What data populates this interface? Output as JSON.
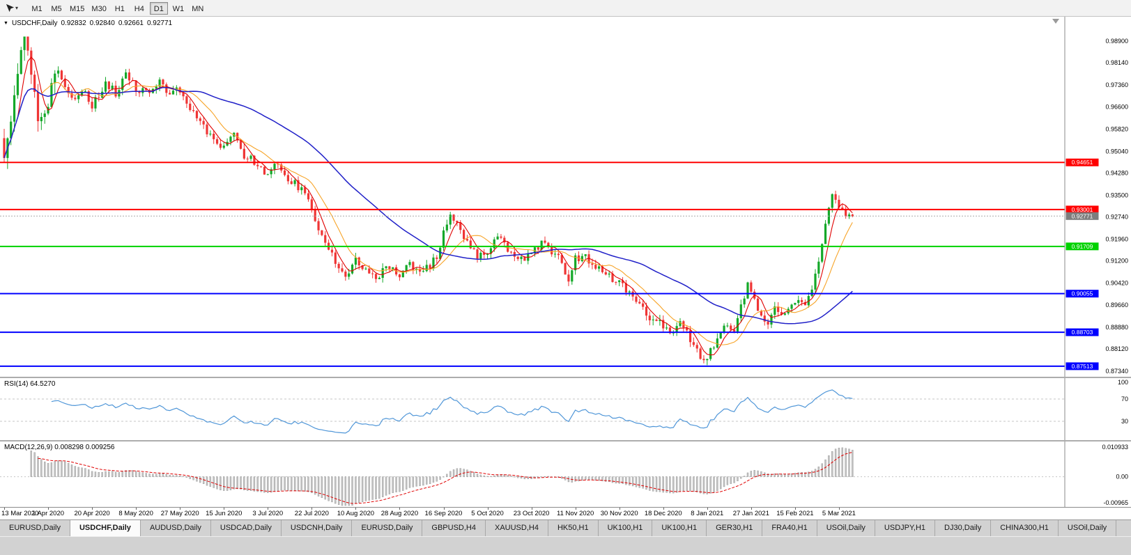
{
  "toolbar": {
    "timeframes": [
      "M1",
      "M5",
      "M15",
      "M30",
      "H1",
      "H4",
      "D1",
      "W1",
      "MN"
    ],
    "active_timeframe": "D1"
  },
  "chart": {
    "info": {
      "symbol": "USDCHF,Daily",
      "open": "0.92832",
      "high": "0.92840",
      "low": "0.92661",
      "close": "0.92771"
    },
    "axis_labels": [
      "0.98900",
      "0.98140",
      "0.97360",
      "0.96600",
      "0.95820",
      "0.95040",
      "0.94280",
      "0.93500",
      "0.92740",
      "0.91960",
      "0.91200",
      "0.90420",
      "0.89660",
      "0.88880",
      "0.88120",
      "0.87340"
    ],
    "hlines": [
      {
        "price": 0.94651,
        "label": "0.94651",
        "color": "#ff0000",
        "width": 2
      },
      {
        "price": 0.93001,
        "label": "0.93001",
        "color": "#ff0000",
        "width": 2
      },
      {
        "price": 0.91709,
        "label": "0.91709",
        "color": "#00d200",
        "width": 2
      },
      {
        "price": 0.90055,
        "label": "0.90055",
        "color": "#0000ff",
        "width": 2
      },
      {
        "price": 0.88703,
        "label": "0.88703",
        "color": "#0000ff",
        "width": 2
      },
      {
        "price": 0.87513,
        "label": "0.87513",
        "color": "#0000ff",
        "width": 2
      }
    ],
    "current_price": {
      "value": 0.92771,
      "label": "0.92771",
      "box_color": "#7d7d7d"
    }
  },
  "rsi": {
    "label": "RSI(14) 64.5270",
    "line_color": "#4f96d8",
    "levels": [
      {
        "value": 100,
        "label": "100"
      },
      {
        "value": 70,
        "label": "70"
      },
      {
        "value": 30,
        "label": "30"
      }
    ]
  },
  "macd": {
    "label": "MACD(12,26,9) 0.008298 0.009256",
    "axis_max": {
      "value": 0.010933,
      "label": "0.010933"
    },
    "axis_zero": {
      "value": 0,
      "label": "0.00"
    },
    "axis_min": {
      "value": -0.00965,
      "label": "-0.00965"
    },
    "histogram_color": "#c4c4c4",
    "signal_color": "#e00000"
  },
  "date_axis": {
    "labels": [
      "13 Mar 2020",
      "1 Apr 2020",
      "20 Apr 2020",
      "8 May 2020",
      "27 May 2020",
      "15 Jun 2020",
      "3 Jul 2020",
      "22 Jul 2020",
      "10 Aug 2020",
      "28 Aug 2020",
      "16 Sep 2020",
      "5 Oct 2020",
      "23 Oct 2020",
      "11 Nov 2020",
      "30 Nov 2020",
      "18 Dec 2020",
      "8 Jan 2021",
      "27 Jan 2021",
      "15 Feb 2021",
      "5 Mar 2021"
    ]
  },
  "tabs": [
    {
      "label": "EURUSD,Daily",
      "active": false
    },
    {
      "label": "USDCHF,Daily",
      "active": true
    },
    {
      "label": "AUDUSD,Daily",
      "active": false
    },
    {
      "label": "USDCAD,Daily",
      "active": false
    },
    {
      "label": "USDCNH,Daily",
      "active": false
    },
    {
      "label": "EURUSD,Daily",
      "active": false
    },
    {
      "label": "GBPUSD,H4",
      "active": false
    },
    {
      "label": "XAUUSD,H4",
      "active": false
    },
    {
      "label": "HK50,H1",
      "active": false
    },
    {
      "label": "UK100,H1",
      "active": false
    },
    {
      "label": "UK100,H1",
      "active": false
    },
    {
      "label": "GER30,H1",
      "active": false
    },
    {
      "label": "FRA40,H1",
      "active": false
    },
    {
      "label": "USOil,Daily",
      "active": false
    },
    {
      "label": "USDJPY,H1",
      "active": false
    },
    {
      "label": "DJ30,Daily",
      "active": false
    },
    {
      "label": "CHINA300,H1",
      "active": false
    },
    {
      "label": "USOil,Daily",
      "active": false
    }
  ],
  "chart_data": {
    "type": "candlestick",
    "symbol": "USDCHF",
    "timeframe": "Daily",
    "title": "USDCHF,Daily",
    "price_range": {
      "top": 0.989,
      "bottom": 0.8734
    },
    "candle_count": 252,
    "candles_per_tick": 13,
    "last_close": 0.92771,
    "close_anchors": [
      [
        0,
        0.947
      ],
      [
        2,
        0.9575
      ],
      [
        4,
        0.98
      ],
      [
        6,
        0.9885
      ],
      [
        8,
        0.976
      ],
      [
        10,
        0.96
      ],
      [
        13,
        0.9665
      ],
      [
        15,
        0.9795
      ],
      [
        17,
        0.9755
      ],
      [
        21,
        0.968
      ],
      [
        24,
        0.971
      ],
      [
        26,
        0.967
      ],
      [
        30,
        0.9745
      ],
      [
        33,
        0.9705
      ],
      [
        36,
        0.9765
      ],
      [
        39,
        0.9725
      ],
      [
        43,
        0.9695
      ],
      [
        46,
        0.974
      ],
      [
        49,
        0.9705
      ],
      [
        52,
        0.9715
      ],
      [
        55,
        0.9645
      ],
      [
        58,
        0.96
      ],
      [
        61,
        0.955
      ],
      [
        65,
        0.951
      ],
      [
        68,
        0.956
      ],
      [
        71,
        0.949
      ],
      [
        74,
        0.9465
      ],
      [
        78,
        0.9425
      ],
      [
        81,
        0.9455
      ],
      [
        84,
        0.94
      ],
      [
        88,
        0.9375
      ],
      [
        91,
        0.93
      ],
      [
        93,
        0.924
      ],
      [
        96,
        0.9165
      ],
      [
        99,
        0.91
      ],
      [
        101,
        0.906
      ],
      [
        104,
        0.913
      ],
      [
        107,
        0.909
      ],
      [
        110,
        0.9055
      ],
      [
        113,
        0.9105
      ],
      [
        117,
        0.9065
      ],
      [
        120,
        0.911
      ],
      [
        123,
        0.908
      ],
      [
        126,
        0.91
      ],
      [
        128,
        0.914
      ],
      [
        130,
        0.9215
      ],
      [
        132,
        0.929
      ],
      [
        134,
        0.925
      ],
      [
        137,
        0.918
      ],
      [
        140,
        0.914
      ],
      [
        143,
        0.9158
      ],
      [
        146,
        0.92
      ],
      [
        149,
        0.9165
      ],
      [
        152,
        0.9118
      ],
      [
        156,
        0.9148
      ],
      [
        159,
        0.9183
      ],
      [
        162,
        0.9152
      ],
      [
        165,
        0.9118
      ],
      [
        167,
        0.9038
      ],
      [
        169,
        0.9128
      ],
      [
        172,
        0.9132
      ],
      [
        175,
        0.9102
      ],
      [
        178,
        0.9072
      ],
      [
        182,
        0.9042
      ],
      [
        185,
        0.9008
      ],
      [
        188,
        0.8968
      ],
      [
        191,
        0.8922
      ],
      [
        194,
        0.8902
      ],
      [
        197,
        0.8868
      ],
      [
        200,
        0.8902
      ],
      [
        203,
        0.8848
      ],
      [
        205,
        0.8802
      ],
      [
        207,
        0.876
      ],
      [
        209,
        0.8802
      ],
      [
        211,
        0.8852
      ],
      [
        213,
        0.8895
      ],
      [
        216,
        0.8882
      ],
      [
        218,
        0.8958
      ],
      [
        220,
        0.904
      ],
      [
        222,
        0.8978
      ],
      [
        224,
        0.8928
      ],
      [
        226,
        0.8908
      ],
      [
        228,
        0.8952
      ],
      [
        231,
        0.8938
      ],
      [
        234,
        0.8978
      ],
      [
        237,
        0.8968
      ],
      [
        239,
        0.9012
      ],
      [
        241,
        0.9122
      ],
      [
        243,
        0.9262
      ],
      [
        245,
        0.9355
      ],
      [
        246,
        0.9332
      ],
      [
        247,
        0.9302
      ],
      [
        249,
        0.9282
      ],
      [
        251,
        0.92771
      ]
    ],
    "colors": {
      "up": "#14a829",
      "down": "#ef3535"
    },
    "moving_averages": [
      {
        "period": 5,
        "color": "#e00000"
      },
      {
        "period": 12,
        "color": "#f7a428"
      },
      {
        "period": 45,
        "color": "#2020c8"
      }
    ],
    "indicators": {
      "rsi_period": 14,
      "macd_params": [
        12,
        26,
        9
      ]
    }
  }
}
